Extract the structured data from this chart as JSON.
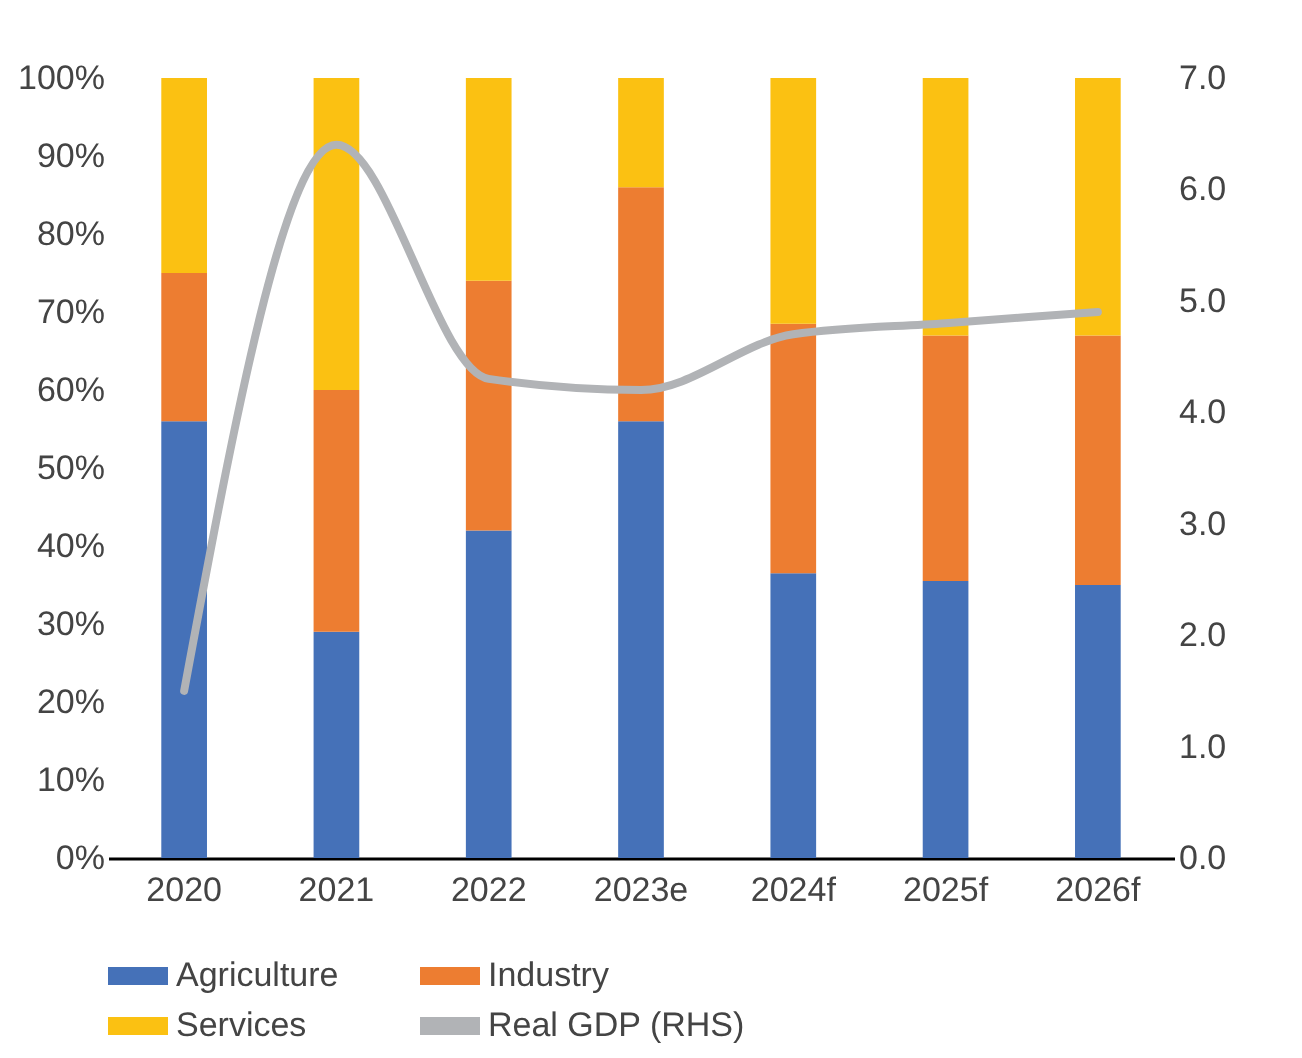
{
  "chart_data": {
    "type": "bar",
    "stacked": true,
    "categories": [
      "2020",
      "2021",
      "2022",
      "2023e",
      "2024f",
      "2025f",
      "2026f"
    ],
    "series": [
      {
        "name": "Agriculture",
        "color": "#4571b8",
        "values": [
          56,
          29,
          42,
          56,
          36.5,
          35.5,
          35
        ]
      },
      {
        "name": "Industry",
        "color": "#ed7d31",
        "values": [
          19,
          31,
          32,
          30,
          32,
          31.5,
          32
        ]
      },
      {
        "name": "Services",
        "color": "#fbc112",
        "values": [
          25,
          40,
          26,
          14,
          31.5,
          33,
          33
        ]
      },
      {
        "name": "Real GDP (RHS)",
        "type": "line",
        "axis": "y2",
        "color": "#b1b3b6",
        "values": [
          1.5,
          6.4,
          4.3,
          4.2,
          4.7,
          4.8,
          4.9
        ]
      }
    ],
    "ylim": [
      0,
      100
    ],
    "yticks": [
      {
        "value": 0,
        "label": "0%"
      },
      {
        "value": 10,
        "label": "10%"
      },
      {
        "value": 20,
        "label": "20%"
      },
      {
        "value": 30,
        "label": "30%"
      },
      {
        "value": 40,
        "label": "40%"
      },
      {
        "value": 50,
        "label": "50%"
      },
      {
        "value": 60,
        "label": "60%"
      },
      {
        "value": 70,
        "label": "70%"
      },
      {
        "value": 80,
        "label": "80%"
      },
      {
        "value": 90,
        "label": "90%"
      },
      {
        "value": 100,
        "label": "100%"
      }
    ],
    "y2lim": [
      0,
      7
    ],
    "y2ticks": [
      {
        "value": 0,
        "label": "0.0"
      },
      {
        "value": 1,
        "label": "1.0"
      },
      {
        "value": 2,
        "label": "2.0"
      },
      {
        "value": 3,
        "label": "3.0"
      },
      {
        "value": 4,
        "label": "4.0"
      },
      {
        "value": 5,
        "label": "5.0"
      },
      {
        "value": 6,
        "label": "6.0"
      },
      {
        "value": 7,
        "label": "7.0"
      }
    ],
    "legend": "bottom",
    "grid": false
  }
}
